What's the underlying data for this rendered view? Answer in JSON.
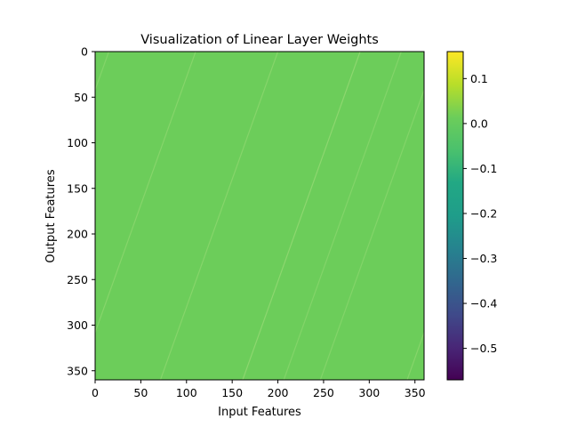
{
  "chart_data": {
    "type": "heatmap",
    "title": "Visualization of Linear Layer Weights",
    "xlabel": "Input Features",
    "ylabel": "Output Features",
    "x_ticks": [
      0,
      50,
      100,
      150,
      200,
      250,
      300,
      350
    ],
    "y_ticks": [
      0,
      50,
      100,
      150,
      200,
      250,
      300,
      350
    ],
    "xlim": [
      0,
      360
    ],
    "ylim": [
      360,
      0
    ],
    "y_inverted": true,
    "matrix_shape": [
      360,
      360
    ],
    "dominant_value": 0.0,
    "colormap": "viridis",
    "colorbar": {
      "ticks": [
        0.1,
        0.0,
        -0.1,
        -0.2,
        -0.3,
        -0.4,
        -0.5
      ],
      "tick_labels": [
        "0.1",
        "0.0",
        "−0.1",
        "−0.2",
        "−0.3",
        "−0.4",
        "−0.5"
      ],
      "range": [
        -0.57,
        0.16
      ]
    },
    "diagonal_bands": [
      {
        "x_at_row0": 15,
        "slope_x_per_row": 0.357,
        "strength": 0.035
      },
      {
        "x_at_row0": 110,
        "slope_x_per_row": 0.357,
        "strength": 0.04
      },
      {
        "x_at_row0": 200,
        "slope_x_per_row": 0.357,
        "strength": 0.04
      },
      {
        "x_at_row0": 290,
        "slope_x_per_row": 0.357,
        "strength": 0.05
      },
      {
        "x_at_row0": 335,
        "slope_x_per_row": 0.357,
        "strength": 0.035
      }
    ],
    "colors": {
      "background_cell": "#6ccd5a",
      "viridis_top": "#fde725",
      "viridis_bottom": "#440154"
    }
  }
}
